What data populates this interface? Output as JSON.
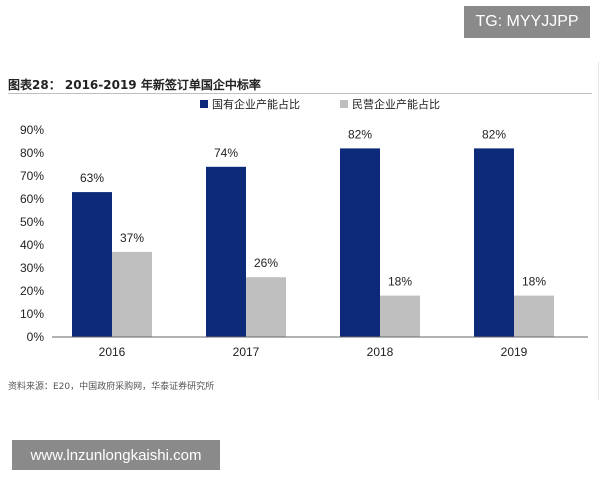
{
  "watermark_top": "TG: MYYJJPP",
  "watermark_bottom": "www.lnzunlongkaishi.com",
  "source_note": "资料来源：E20，中国政府采购网，华泰证券研究所",
  "colors": {
    "soe": "#0d2a7a",
    "private": "#bfbfbf",
    "axis": "#666666"
  },
  "chart_data": {
    "type": "bar",
    "title": "图表28：   2016-2019 年新签订单国企中标率",
    "categories": [
      "2016",
      "2017",
      "2018",
      "2019"
    ],
    "series": [
      {
        "name": "国有企业产能占比",
        "values": [
          63,
          74,
          82,
          82
        ],
        "labels": [
          "63%",
          "74%",
          "82%",
          "82%"
        ]
      },
      {
        "name": "民营企业产能占比",
        "values": [
          37,
          26,
          18,
          18
        ],
        "labels": [
          "37%",
          "26%",
          "18%",
          "18%"
        ]
      }
    ],
    "ylim": [
      0,
      90
    ],
    "yticks": [
      "0%",
      "10%",
      "20%",
      "30%",
      "40%",
      "50%",
      "60%",
      "70%",
      "80%",
      "90%"
    ],
    "grid": false,
    "legend": "top-center"
  }
}
